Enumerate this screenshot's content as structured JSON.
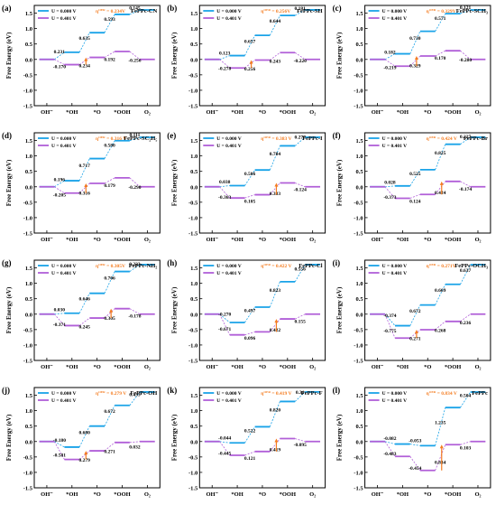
{
  "figure": {
    "legend_u0": "U = 0.000 V",
    "legend_u1": "U = 0.401 V",
    "ylabel": "Free Energy (eV)",
    "xticks": [
      "OH⁻",
      "*OH",
      "*O",
      "*OOH",
      "O₂"
    ],
    "yticks": [
      "1.5",
      "1.0",
      "0.5",
      "0.0",
      "-0.5",
      "-1.0",
      "-1.5"
    ],
    "colors": {
      "u0": "#1aa3e8",
      "u1": "#b15fd8",
      "eta": "#f47c20",
      "arrow": "#f47c20"
    },
    "panels_sup": "OER"
  },
  "chart_data": [
    {
      "type": "line",
      "panel": "(a)",
      "title": "FePPc-CN",
      "eta": "0.234V",
      "u0": [
        0,
        0.231,
        0.866,
        1.459,
        1.604
      ],
      "u1": [
        0,
        -0.17,
        0.064,
        0.256,
        0.0
      ],
      "steps_u0": [
        "0.231",
        "0.635",
        "0.593",
        "0.145"
      ],
      "steps_u1": [
        "-0.170",
        "0.234",
        "0.192",
        "-0.256"
      ]
    },
    {
      "type": "line",
      "panel": "(b)",
      "title": "FePPc-SH",
      "eta": "0.256V",
      "u0": [
        0,
        0.123,
        0.78,
        1.424,
        1.605
      ],
      "u1": [
        0,
        -0.278,
        -0.022,
        0.22,
        0.0
      ],
      "steps_u0": [
        "0.123",
        "0.657",
        "0.644",
        "0.181"
      ],
      "steps_u1": [
        "-0.278",
        "0.256",
        "0.243",
        "-0.220"
      ]
    },
    {
      "type": "line",
      "panel": "(c)",
      "title": "FePPc-SCH₃",
      "eta": "0.329V",
      "u0": [
        0,
        0.182,
        0.912,
        1.483,
        1.604
      ],
      "u1": [
        0,
        -0.219,
        0.11,
        0.28,
        0.0
      ],
      "steps_u0": [
        "0.182",
        "0.730",
        "0.571",
        "0.121"
      ],
      "steps_u1": [
        "-0.219",
        "0.329",
        "0.170",
        "-0.280"
      ]
    },
    {
      "type": "line",
      "panel": "(d)",
      "title": "FePPc-SC₂H₅",
      "eta": "0.316 V",
      "u0": [
        0,
        0.196,
        0.913,
        1.493,
        1.604
      ],
      "u1": [
        0,
        -0.205,
        0.111,
        0.29,
        0.0
      ],
      "steps_u0": [
        "0.196",
        "0.717",
        "0.580",
        "0.111"
      ],
      "steps_u1": [
        "-0.205",
        "0.316",
        "0.179",
        "-0.290"
      ]
    },
    {
      "type": "line",
      "panel": "(e)",
      "title": "FePPc-I",
      "eta": "0.383 V",
      "u0": [
        0,
        0.038,
        0.544,
        1.328,
        1.605
      ],
      "u1": [
        0,
        -0.363,
        -0.258,
        0.124,
        0.0
      ],
      "steps_u0": [
        "0.038",
        "0.506",
        "0.784",
        "0.277"
      ],
      "steps_u1": [
        "-0.363",
        "0.105",
        "0.383",
        "-0.124"
      ]
    },
    {
      "type": "line",
      "panel": "(f)",
      "title": "FePPc-Br",
      "eta": "0.424 V",
      "u0": [
        0,
        0.028,
        0.553,
        1.378,
        1.605
      ],
      "u1": [
        0,
        -0.373,
        -0.249,
        0.174,
        0.0
      ],
      "steps_u0": [
        "0.028",
        "0.525",
        "0.825",
        "0.227"
      ],
      "steps_u1": [
        "-0.373",
        "0.124",
        "0.424",
        "-0.174"
      ]
    },
    {
      "type": "line",
      "panel": "(g)",
      "title": "FePPc-NH₂",
      "eta": "0.305V",
      "u0": [
        0,
        0.03,
        0.676,
        1.382,
        1.605
      ],
      "u1": [
        0,
        -0.371,
        -0.126,
        0.178,
        0.0
      ],
      "steps_u0": [
        "0.030",
        "0.646",
        "0.706",
        "0.223"
      ],
      "steps_u1": [
        "-0.371",
        "0.245",
        "0.305",
        "-0.178"
      ]
    },
    {
      "type": "line",
      "panel": "(h)",
      "title": "FePPc-Cl",
      "eta": "0.422 V",
      "u0": [
        0,
        -0.27,
        0.227,
        1.05,
        1.606
      ],
      "u1": [
        0,
        -0.671,
        -0.575,
        -0.155,
        0.0
      ],
      "steps_u0": [
        "-0.270",
        "0.497",
        "0.823",
        "0.556"
      ],
      "steps_u1": [
        "-0.671",
        "0.096",
        "0.422",
        "0.155"
      ]
    },
    {
      "type": "line",
      "panel": "(i)",
      "title": "FePPc-OCH₃",
      "eta": "0.271V",
      "u0": [
        0,
        -0.374,
        0.298,
        0.967,
        1.604
      ],
      "u1": [
        0,
        -0.775,
        -0.504,
        -0.236,
        0.0
      ],
      "steps_u0": [
        "-0.374",
        "0.672",
        "0.669",
        "0.637"
      ],
      "steps_u1": [
        "-0.775",
        "0.271",
        "0.268",
        "0.236"
      ]
    },
    {
      "type": "line",
      "panel": "(j)",
      "title": "FePPc-OH",
      "eta": "0.279 V",
      "u0": [
        0,
        -0.18,
        0.5,
        1.172,
        1.605
      ],
      "u1": [
        0,
        -0.581,
        -0.302,
        -0.031,
        0.0
      ],
      "steps_u0": [
        "-0.180",
        "0.680",
        "0.672",
        "0.433"
      ],
      "steps_u1": [
        "-0.581",
        "0.279",
        "0.271",
        "0.032"
      ]
    },
    {
      "type": "line",
      "panel": "(k)",
      "title": "FePPc-F",
      "eta": "0.419 V",
      "u0": [
        0,
        -0.044,
        0.478,
        1.298,
        1.608
      ],
      "u1": [
        0,
        -0.445,
        -0.324,
        0.095,
        0.0
      ],
      "steps_u0": [
        "-0.044",
        "0.522",
        "0.820",
        "0.31"
      ],
      "steps_u1": [
        "-0.445",
        "0.121",
        "0.419",
        "-0.095"
      ]
    },
    {
      "type": "line",
      "panel": "(l)",
      "title": "FePPc",
      "eta": "0.834 V",
      "u0": [
        0,
        -0.082,
        -0.135,
        1.1,
        1.604
      ],
      "u1": [
        0,
        -0.483,
        -0.937,
        -0.103,
        0.0
      ],
      "steps_u0": [
        "-0.082",
        "-0.053",
        "1.235",
        "0.504"
      ],
      "steps_u1": [
        "-0.483",
        "-0.454",
        "0.834",
        "0.103"
      ]
    }
  ]
}
